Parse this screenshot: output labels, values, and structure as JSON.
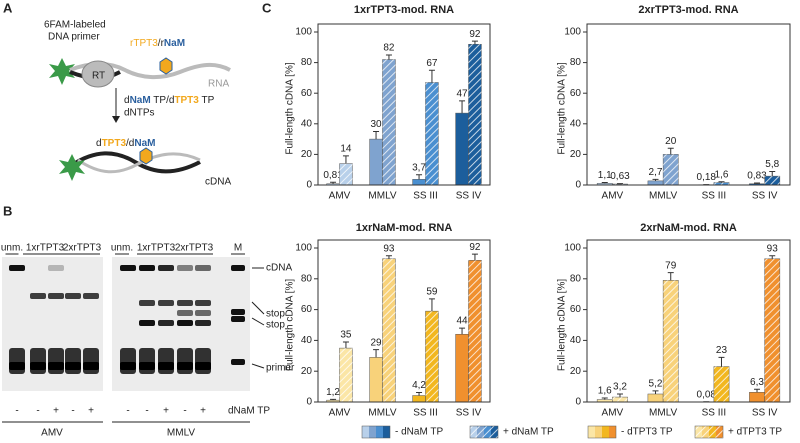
{
  "panel_labels": [
    "A",
    "B",
    "C"
  ],
  "diagram": {
    "primer_label": [
      "6FAM-labeled",
      "DNA primer"
    ],
    "rt": "RT",
    "rna_mod": [
      "r",
      "TPT3",
      "/r",
      "NaM"
    ],
    "rna": "RNA",
    "reagents": [
      "d",
      "NaM",
      " TP/d",
      "TPT3",
      " TP"
    ],
    "dntps": "dNTPs",
    "cdna_mod": [
      "d",
      "TPT3",
      "/d",
      "NaM"
    ],
    "cdna": "cDNA"
  },
  "gel": {
    "lane_groups": [
      "unm.",
      "1xrTPT3",
      "2xrTPT3",
      "unm.",
      "1xrTPT3",
      "2xrTPT3",
      "M"
    ],
    "band_labels": [
      "cDNA",
      "stop",
      "stop",
      "primer"
    ],
    "signs": [
      "-",
      "-",
      "+",
      "-",
      "+",
      "-",
      "-",
      "+",
      "-",
      "+"
    ],
    "sign_label": "dNaM TP",
    "enzymes": [
      "AMV",
      "MMLV"
    ]
  },
  "chart_data": [
    {
      "type": "bar",
      "title": "1xrTPT3-mod. RNA",
      "ylabel": "Full-length cDNA [%]",
      "categories": [
        "AMV",
        "MMLV",
        "SS III",
        "SS IV"
      ],
      "ylim": [
        0,
        100
      ],
      "yticks": [
        0,
        20,
        40,
        60,
        80,
        100
      ],
      "series": [
        {
          "name": "- dNaM TP",
          "colors": [
            "#b8d0ea",
            "#7fa3cf",
            "#4a8fd0",
            "#1c5e9c"
          ],
          "hatch": false,
          "values": [
            0.81,
            30,
            3.7,
            47
          ],
          "value_labels": [
            "0,81",
            "30",
            "3,7",
            "47"
          ],
          "errors": [
            1,
            5,
            3,
            8
          ]
        },
        {
          "name": "+ dNaM TP",
          "colors": [
            "#b8d0ea",
            "#7fa3cf",
            "#4a8fd0",
            "#1c5e9c"
          ],
          "hatch": true,
          "values": [
            14,
            82,
            67,
            92
          ],
          "value_labels": [
            "14",
            "82",
            "67",
            "92"
          ],
          "errors": [
            5,
            3,
            8,
            2
          ]
        }
      ]
    },
    {
      "type": "bar",
      "title": "2xrTPT3-mod. RNA",
      "ylabel": "Full-length cDNA [%]",
      "categories": [
        "AMV",
        "MMLV",
        "SS III",
        "SS IV"
      ],
      "ylim": [
        0,
        100
      ],
      "yticks": [
        0,
        20,
        40,
        60,
        80,
        100
      ],
      "series": [
        {
          "colors": [
            "#b8d0ea",
            "#7fa3cf",
            "#4a8fd0",
            "#1c5e9c"
          ],
          "hatch": false,
          "values": [
            1.1,
            2.7,
            0.18,
            0.83
          ],
          "value_labels": [
            "1,1",
            "2,7",
            "0,18",
            "0,83"
          ],
          "errors": [
            0.5,
            1,
            0.1,
            0.5
          ]
        },
        {
          "colors": [
            "#b8d0ea",
            "#7fa3cf",
            "#4a8fd0",
            "#1c5e9c"
          ],
          "hatch": true,
          "values": [
            0.63,
            20,
            1.6,
            5.8
          ],
          "value_labels": [
            "0,63",
            "20",
            "1,6",
            "5,8"
          ],
          "errors": [
            0.3,
            4,
            0.5,
            3
          ]
        }
      ]
    },
    {
      "type": "bar",
      "title": "1xrNaM-mod. RNA",
      "ylabel": "Full-length cDNA [%]",
      "categories": [
        "AMV",
        "MMLV",
        "SS III",
        "SS IV"
      ],
      "ylim": [
        0,
        100
      ],
      "yticks": [
        0,
        20,
        40,
        60,
        80,
        100
      ],
      "series": [
        {
          "name": "- dTPT3 TP",
          "colors": [
            "#fbe6a6",
            "#f8d27a",
            "#f2b71f",
            "#f0902e"
          ],
          "hatch": false,
          "values": [
            1.2,
            29,
            4.2,
            44
          ],
          "value_labels": [
            "1,2",
            "29",
            "4,2",
            "44"
          ],
          "errors": [
            0.5,
            5,
            2,
            4
          ]
        },
        {
          "name": "+ dTPT3 TP",
          "colors": [
            "#fbe6a6",
            "#f8d27a",
            "#f2b71f",
            "#f0902e"
          ],
          "hatch": true,
          "values": [
            35,
            93,
            59,
            92
          ],
          "value_labels": [
            "35",
            "93",
            "59",
            "92"
          ],
          "errors": [
            4,
            2,
            8,
            4
          ]
        }
      ]
    },
    {
      "type": "bar",
      "title": "2xrNaM-mod. RNA",
      "ylabel": "Full-length cDNA [%]",
      "categories": [
        "AMV",
        "MMLV",
        "SS III",
        "SS IV"
      ],
      "ylim": [
        0,
        100
      ],
      "yticks": [
        0,
        20,
        40,
        60,
        80,
        100
      ],
      "series": [
        {
          "colors": [
            "#fbe6a6",
            "#f8d27a",
            "#f2b71f",
            "#f0902e"
          ],
          "hatch": false,
          "values": [
            1.6,
            5.2,
            0.08,
            6.3
          ],
          "value_labels": [
            "1,6",
            "5,2",
            "0,08",
            "6,3"
          ],
          "errors": [
            1,
            2,
            0.1,
            2
          ]
        },
        {
          "colors": [
            "#fbe6a6",
            "#f8d27a",
            "#f2b71f",
            "#f0902e"
          ],
          "hatch": true,
          "values": [
            3.2,
            79,
            23,
            93
          ],
          "value_labels": [
            "3,2",
            "79",
            "23",
            "93"
          ],
          "errors": [
            2,
            5,
            6,
            2
          ]
        }
      ]
    }
  ]
}
